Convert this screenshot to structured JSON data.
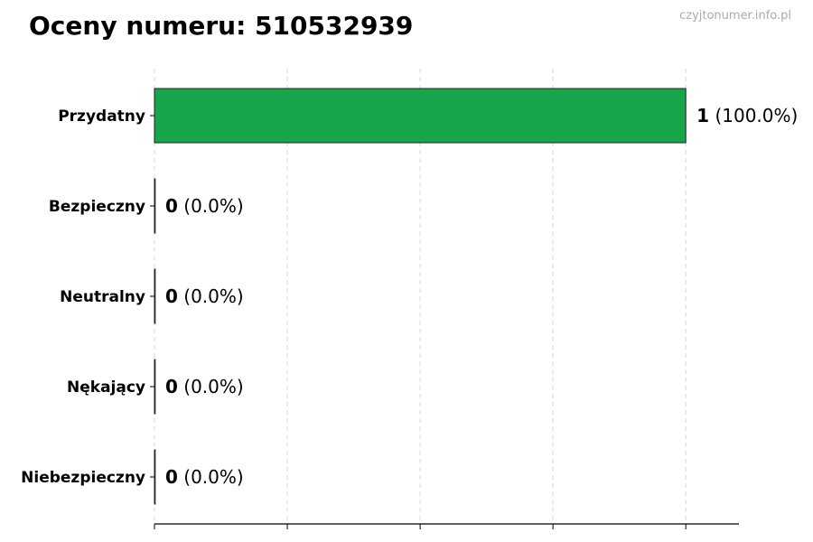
{
  "title": "Oceny numeru: 510532939",
  "watermark": "czyjtonumer.info.pl",
  "chart_data": {
    "type": "bar",
    "orientation": "horizontal",
    "categories": [
      "Przydatny",
      "Bezpieczny",
      "Neutralny",
      "Nękający",
      "Niebezpieczny"
    ],
    "values": [
      1,
      0,
      0,
      0,
      0
    ],
    "value_labels": [
      "1",
      "0",
      "0",
      "0",
      "0"
    ],
    "percent_labels": [
      "(100.0%)",
      "(0.0%)",
      "(0.0%)",
      "(0.0%)",
      "(0.0%)"
    ],
    "xlim": [
      0,
      1.1
    ],
    "xticks": [
      0,
      0.25,
      0.5,
      0.75,
      1.0
    ],
    "xtick_labels_shown": false,
    "grid": "vertical dashed",
    "bar_color": "#18a449",
    "bar_edge_color": "#222222"
  }
}
